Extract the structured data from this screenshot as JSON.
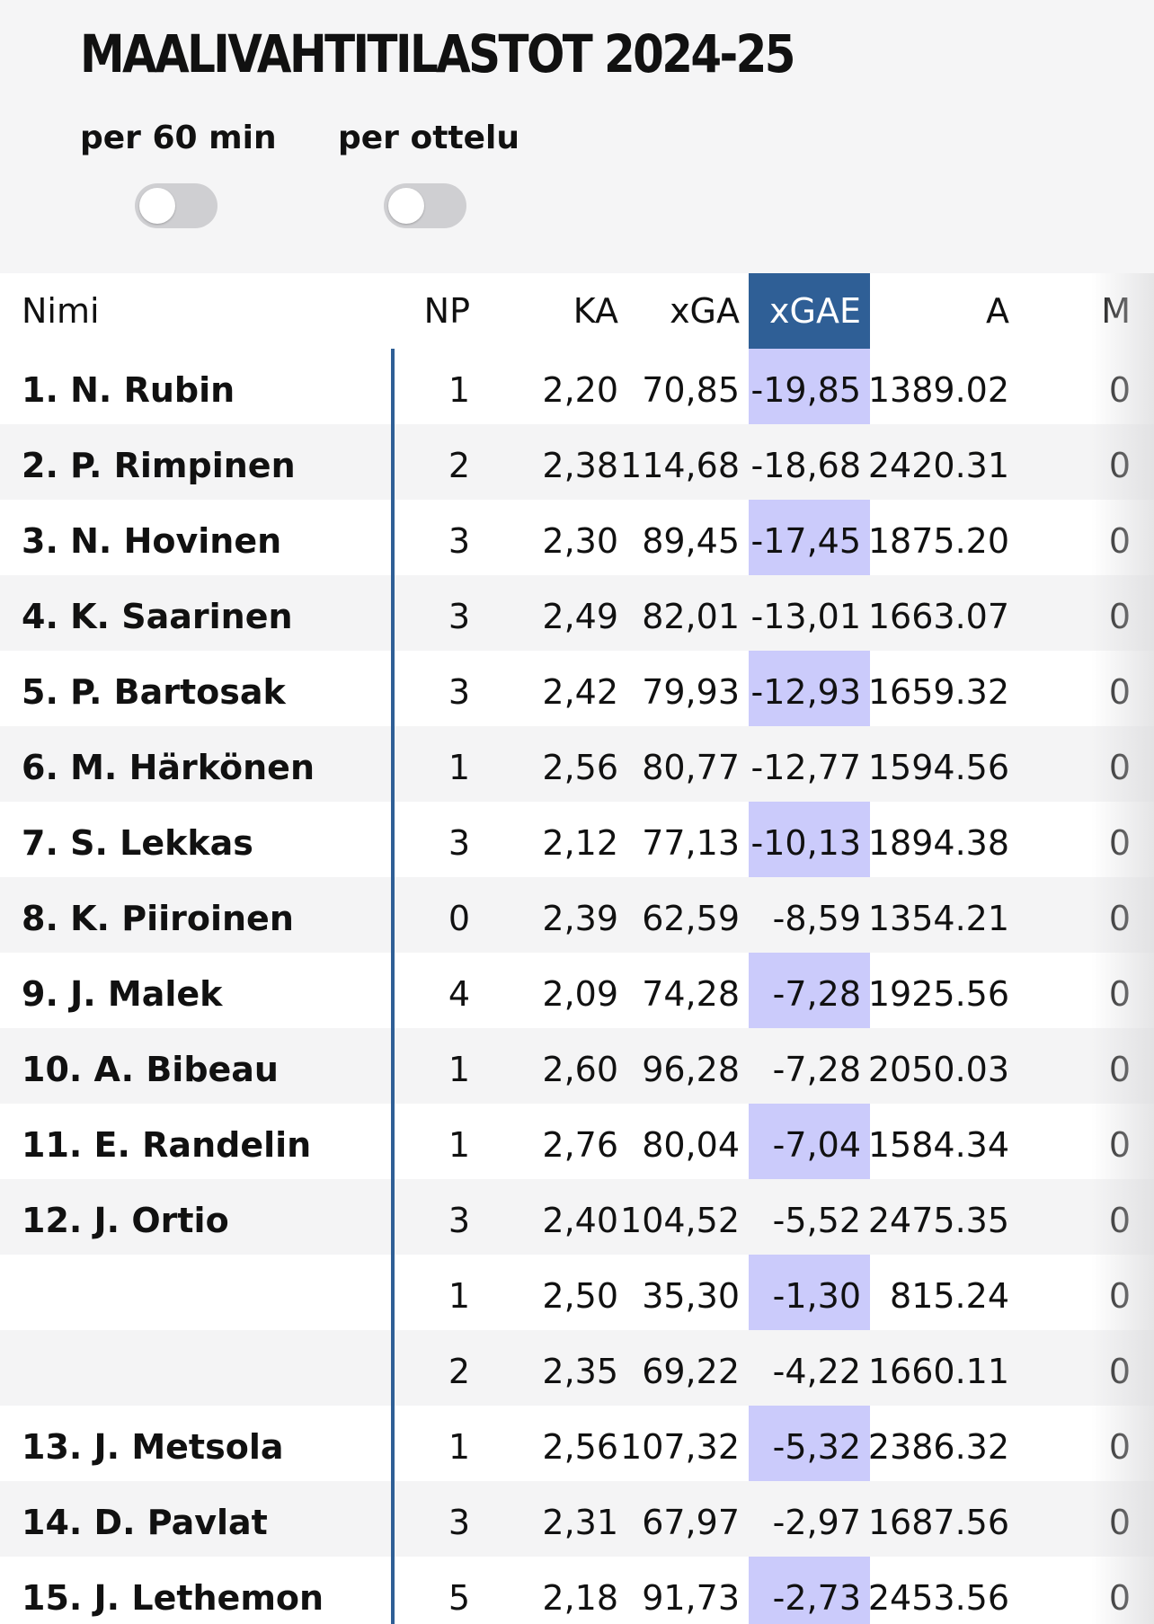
{
  "title": "MAALIVAHTITILASTOT 2024-25",
  "toggles": [
    {
      "label": "per 60 min",
      "on": false
    },
    {
      "label": "per ottelu",
      "on": false
    }
  ],
  "colors": {
    "accent": "#2f5f96",
    "highlight": "#cbcbfb"
  },
  "table": {
    "headers": {
      "name": "Nimi",
      "np": "NP",
      "ka": "KA",
      "xga": "xGA",
      "xgae": "xGAE",
      "a": "A",
      "m": "M"
    },
    "rows": [
      {
        "name": "1.  N. Rubin",
        "np": "1",
        "ka": "2,20",
        "xga": "70,85",
        "xgae": "-19,85",
        "a": "1389.02",
        "m": "0"
      },
      {
        "name": "2.  P. Rimpinen",
        "np": "2",
        "ka": "2,38",
        "xga": "114,68",
        "xgae": "-18,68",
        "a": "2420.31",
        "m": "0"
      },
      {
        "name": "3.  N. Hovinen",
        "np": "3",
        "ka": "2,30",
        "xga": "89,45",
        "xgae": "-17,45",
        "a": "1875.20",
        "m": "0"
      },
      {
        "name": "4.  K. Saarinen",
        "np": "3",
        "ka": "2,49",
        "xga": "82,01",
        "xgae": "-13,01",
        "a": "1663.07",
        "m": "0"
      },
      {
        "name": "5.  P. Bartosak",
        "np": "3",
        "ka": "2,42",
        "xga": "79,93",
        "xgae": "-12,93",
        "a": "1659.32",
        "m": "0"
      },
      {
        "name": "6.  M. Härkönen",
        "np": "1",
        "ka": "2,56",
        "xga": "80,77",
        "xgae": "-12,77",
        "a": "1594.56",
        "m": "0"
      },
      {
        "name": "7.  S. Lekkas",
        "np": "3",
        "ka": "2,12",
        "xga": "77,13",
        "xgae": "-10,13",
        "a": "1894.38",
        "m": "0"
      },
      {
        "name": "8.  K. Piiroinen",
        "np": "0",
        "ka": "2,39",
        "xga": "62,59",
        "xgae": "-8,59",
        "a": "1354.21",
        "m": "0"
      },
      {
        "name": "9.  J. Malek",
        "np": "4",
        "ka": "2,09",
        "xga": "74,28",
        "xgae": "-7,28",
        "a": "1925.56",
        "m": "0"
      },
      {
        "name": "10.  A. Bibeau",
        "np": "1",
        "ka": "2,60",
        "xga": "96,28",
        "xgae": "-7,28",
        "a": "2050.03",
        "m": "0"
      },
      {
        "name": "11.  E. Randelin",
        "np": "1",
        "ka": "2,76",
        "xga": "80,04",
        "xgae": "-7,04",
        "a": "1584.34",
        "m": "0"
      },
      {
        "name": "12.  J. Ortio",
        "np": "3",
        "ka": "2,40",
        "xga": "104,52",
        "xgae": "-5,52",
        "a": "2475.35",
        "m": "0"
      },
      {
        "name": "",
        "np": "1",
        "ka": "2,50",
        "xga": "35,30",
        "xgae": "-1,30",
        "a": "815.24",
        "m": "0"
      },
      {
        "name": "",
        "np": "2",
        "ka": "2,35",
        "xga": "69,22",
        "xgae": "-4,22",
        "a": "1660.11",
        "m": "0"
      },
      {
        "name": "13.  J. Metsola",
        "np": "1",
        "ka": "2,56",
        "xga": "107,32",
        "xgae": "-5,32",
        "a": "2386.32",
        "m": "0"
      },
      {
        "name": "14.  D. Pavlat",
        "np": "3",
        "ka": "2,31",
        "xga": "67,97",
        "xgae": "-2,97",
        "a": "1687.56",
        "m": "0"
      },
      {
        "name": "15.  J. Lethemon",
        "np": "5",
        "ka": "2,18",
        "xga": "91,73",
        "xgae": "-2,73",
        "a": "2453.56",
        "m": "0"
      }
    ]
  }
}
